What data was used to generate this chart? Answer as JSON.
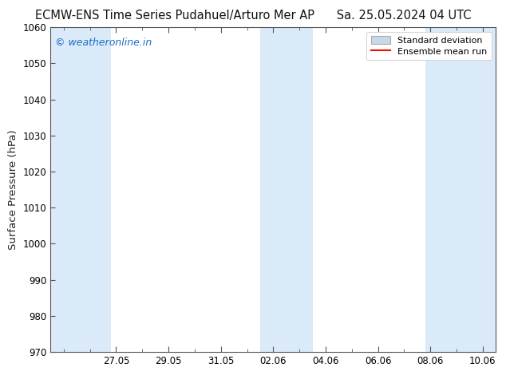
{
  "title": "ECMW-ENS Time Series Pudahuel/Arturo Mer AP",
  "title_right": "Sa. 25.05.2024 04 UTC",
  "ylabel": "Surface Pressure (hPa)",
  "ylim": [
    970,
    1060
  ],
  "yticks": [
    970,
    980,
    990,
    1000,
    1010,
    1020,
    1030,
    1040,
    1050,
    1060
  ],
  "bg_color": "#ffffff",
  "plot_bg_color": "#ffffff",
  "shade_color": "#daeaf8",
  "watermark_text": "© weatheronline.in",
  "watermark_color": "#1a6dcc",
  "legend_std_label": "Standard deviation",
  "legend_mean_label": "Ensemble mean run",
  "legend_std_color": "#c8d8e8",
  "legend_std_edge": "#aaaaaa",
  "legend_mean_color": "#ee1100",
  "xlim": [
    -0.5,
    16.5
  ],
  "shade_bands": [
    {
      "start": -0.5,
      "end": 1.8
    },
    {
      "start": 7.5,
      "end": 9.5
    },
    {
      "start": 13.8,
      "end": 16.5
    }
  ],
  "xtick_labels": [
    "27.05",
    "29.05",
    "31.05",
    "02.06",
    "04.06",
    "06.06",
    "08.06",
    "10.06"
  ],
  "xtick_positions": [
    2,
    4,
    6,
    8,
    10,
    12,
    14,
    16
  ],
  "title_fontsize": 10.5,
  "tick_fontsize": 8.5,
  "ylabel_fontsize": 9.5,
  "watermark_fontsize": 9,
  "legend_fontsize": 8
}
